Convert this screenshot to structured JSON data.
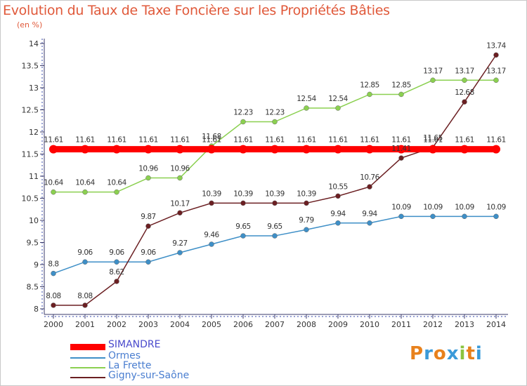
{
  "title": "Evolution du Taux de Taxe Foncière sur les Propriétés Bâties",
  "unit_label": "(en %)",
  "logo": {
    "text": "Proxiti",
    "letters": [
      "P",
      "r",
      "o",
      "x",
      "i",
      "t",
      "i"
    ],
    "colors": [
      "#e8811c",
      "#3a9ad9",
      "#e8811c",
      "#3a9ad9",
      "#8bc43f",
      "#e8811c",
      "#3a9ad9"
    ]
  },
  "colors": {
    "title": "#e0593a",
    "axis": "#3a3a6a",
    "grid": "#d8d8d8"
  },
  "chart_data": {
    "type": "line",
    "title": "Evolution du Taux de Taxe Foncière sur les Propriétés Bâties",
    "ylabel": "(en %)",
    "xlabel": "",
    "x": [
      "2000",
      "2001",
      "2002",
      "2003",
      "2004",
      "2005",
      "2006",
      "2007",
      "2008",
      "2009",
      "2010",
      "2011",
      "2012",
      "2013",
      "2014"
    ],
    "ylim": [
      8,
      14
    ],
    "yticks": [
      "8",
      "8.5",
      "9",
      "9.5",
      "10",
      "10.5",
      "11",
      "11.5",
      "12",
      "12.5",
      "13",
      "13.5",
      "14"
    ],
    "grid": false,
    "legend_position": "bottom-left",
    "series": [
      {
        "name": "SIMANDRE",
        "color": "#ff0000",
        "style": "thick",
        "values": [
          11.61,
          11.61,
          11.61,
          11.61,
          11.61,
          11.61,
          11.61,
          11.61,
          11.61,
          11.61,
          11.61,
          11.61,
          11.61,
          11.61,
          11.61
        ],
        "labels": [
          "11.61",
          "11.61",
          "11.61",
          "11.61",
          "11.61",
          "11.61",
          "11.61",
          "11.61",
          "11.61",
          "11.61",
          "11.61",
          "11.61",
          "11.61",
          "11.61",
          "11.61"
        ]
      },
      {
        "name": "Ormes",
        "color": "#3e8fc7",
        "style": "thin",
        "values": [
          8.8,
          9.06,
          9.06,
          9.06,
          9.27,
          9.46,
          9.65,
          9.65,
          9.79,
          9.94,
          9.94,
          10.09,
          10.09,
          10.09,
          10.09
        ],
        "labels": [
          "8.8",
          "9.06",
          "9.06",
          "9.06",
          "9.27",
          "9.46",
          "9.65",
          "9.65",
          "9.79",
          "9.94",
          "9.94",
          "10.09",
          "10.09",
          "10.09",
          "10.09"
        ]
      },
      {
        "name": "La Frette",
        "color": "#8bd050",
        "style": "thin",
        "values": [
          10.64,
          10.64,
          10.64,
          10.96,
          10.96,
          11.68,
          12.23,
          12.23,
          12.54,
          12.54,
          12.85,
          12.85,
          13.17,
          13.17,
          13.17
        ],
        "labels": [
          "10.64",
          "10.64",
          "10.64",
          "10.96",
          "10.96",
          "11.68",
          "12.23",
          "12.23",
          "12.54",
          "12.54",
          "12.85",
          "12.85",
          "13.17",
          "13.17",
          "13.17"
        ]
      },
      {
        "name": "Gigny-sur-Saône",
        "color": "#6b1f22",
        "style": "thin",
        "values": [
          8.08,
          8.08,
          8.62,
          9.87,
          10.17,
          10.39,
          10.39,
          10.39,
          10.39,
          10.55,
          10.76,
          11.41,
          11.65,
          12.68,
          13.74
        ],
        "labels": [
          "8.08",
          "8.08",
          "8.62",
          "9.87",
          "10.17",
          "10.39",
          "10.39",
          "10.39",
          "10.39",
          "10.55",
          "10.76",
          "11.41",
          "11.65",
          "12.68",
          "13.74"
        ]
      }
    ]
  }
}
